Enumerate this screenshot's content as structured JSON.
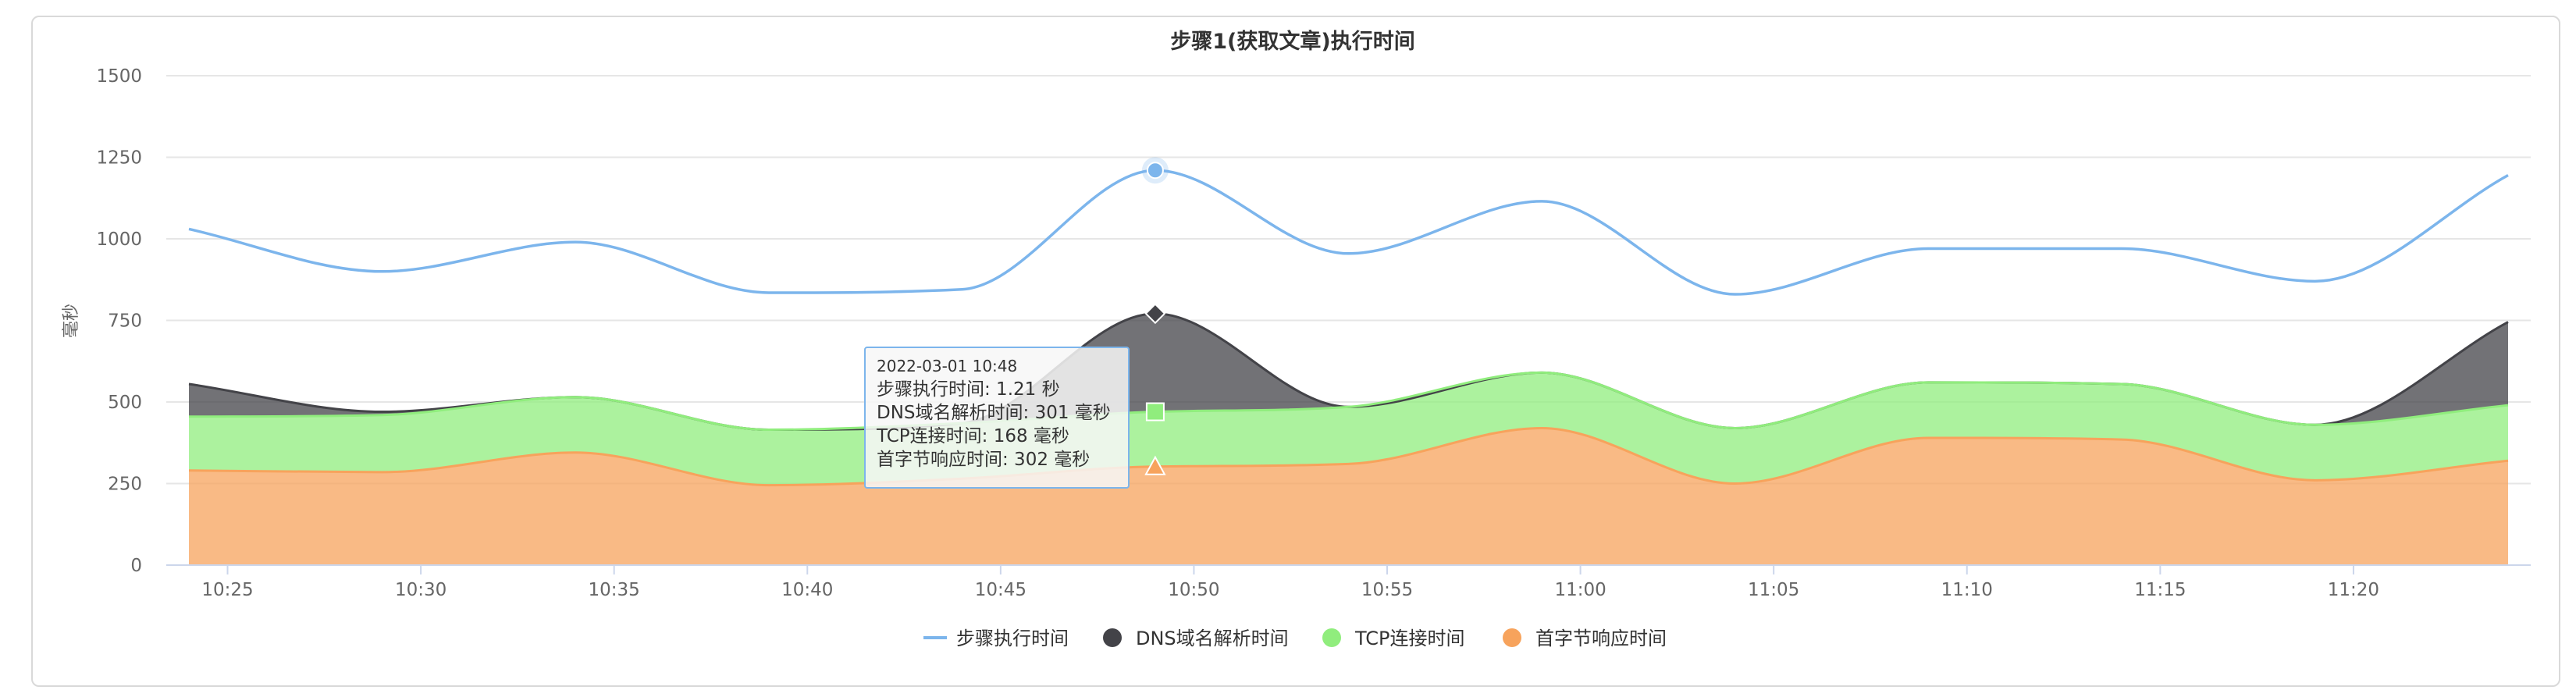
{
  "chart_data": {
    "type": "area",
    "title": "步骤1(获取文章)执行时间",
    "ylabel": "毫秒",
    "ylim": [
      0,
      1500
    ],
    "yticks": [
      0,
      250,
      500,
      750,
      1000,
      1250,
      1500
    ],
    "x_ticks": [
      "10:25",
      "10:30",
      "10:35",
      "10:40",
      "10:45",
      "10:50",
      "10:55",
      "11:00",
      "11:05",
      "11:10",
      "11:15",
      "11:20"
    ],
    "x": [
      "10:24",
      "10:29",
      "10:34",
      "10:39",
      "10:44",
      "10:49",
      "10:54",
      "10:59",
      "11:04",
      "11:09",
      "11:14",
      "11:19",
      "11:24"
    ],
    "series": [
      {
        "name": "步骤执行时间",
        "kind": "line",
        "color": "#7cb5ec",
        "values": [
          1030,
          900,
          990,
          835,
          845,
          1210,
          955,
          1115,
          830,
          970,
          970,
          870,
          1195
        ]
      },
      {
        "name": "DNS域名解析时间",
        "kind": "stacked-area",
        "color": "#434348",
        "values": [
          100,
          10,
          0,
          0,
          0,
          301,
          0,
          0,
          0,
          0,
          0,
          0,
          255
        ]
      },
      {
        "name": "TCP连接时间",
        "kind": "stacked-area",
        "color": "#90ed7d",
        "values": [
          165,
          175,
          170,
          170,
          170,
          168,
          175,
          170,
          170,
          170,
          170,
          170,
          170
        ]
      },
      {
        "name": "首字节响应时间",
        "kind": "stacked-area",
        "color": "#f7a35c",
        "values": [
          290,
          285,
          345,
          245,
          265,
          302,
          310,
          420,
          250,
          390,
          385,
          260,
          320
        ]
      }
    ],
    "legend_position": "bottom",
    "grid": true
  },
  "tooltip": {
    "date": "2022-03-01 10:48",
    "line1": "步骤执行时间: 1.21 秒",
    "line2": "DNS域名解析时间: 301 毫秒",
    "line3": "TCP连接时间: 168 毫秒",
    "line4": "首字节响应时间: 302 毫秒"
  }
}
